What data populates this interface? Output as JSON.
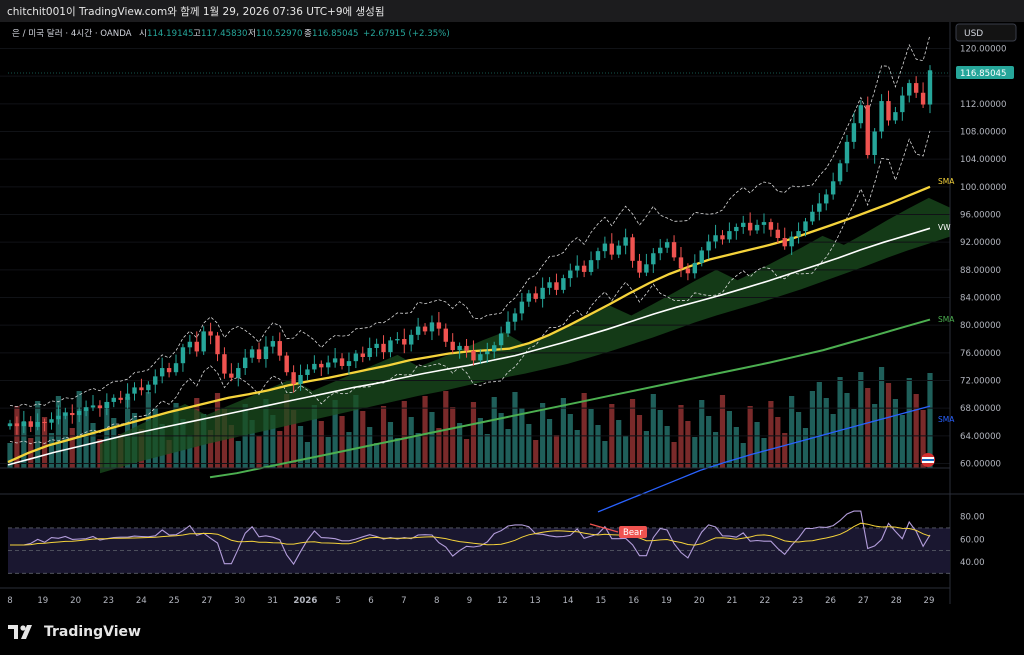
{
  "window": {
    "caption": "chitchit001이 TradingView.com와 함께 1월 29, 2026 07:36 UTC+9에 생성됨"
  },
  "legend": {
    "symbol": "은 / 미국 달러 · 4시간 · OANDA",
    "o_label": "시",
    "o_value": "114.19145",
    "h_label": "고",
    "h_value": "117.45830",
    "l_label": "저",
    "l_value": "110.52970",
    "c_label": "종",
    "c_value": "116.85045",
    "change": "+2.67915 (+2.35%)"
  },
  "currency_button": "USD",
  "price_badge": "116.85045",
  "footer": {
    "brand": "TradingView"
  },
  "colors": {
    "up": "#26a69a",
    "down": "#ef5350",
    "sma_fast": "#f5d33b",
    "sma_mid": "#4caf50",
    "sma_slow": "#2962ff",
    "vwap": "#ffffff",
    "rsi": "#b39ddb",
    "rsi_ma": "#f5d33b"
  },
  "chart_data": {
    "type": "candlestick",
    "price_axis": {
      "ticks": [
        "120.00000",
        "116.00000",
        "112.00000",
        "108.00000",
        "104.00000",
        "100.00000",
        "96.00000",
        "92.00000",
        "88.00000",
        "84.00000",
        "80.00000",
        "76.00000",
        "72.00000",
        "68.00000",
        "64.00000",
        "60.00000"
      ],
      "ylim": [
        59,
        121.5
      ]
    },
    "x_ticks": [
      "8",
      "19",
      "20",
      "23",
      "24",
      "25",
      "27",
      "30",
      "31",
      "2026",
      "5",
      "6",
      "7",
      "8",
      "9",
      "12",
      "13",
      "14",
      "15",
      "16",
      "19",
      "20",
      "21",
      "22",
      "23",
      "26",
      "27",
      "28",
      "29"
    ],
    "closes": [
      65.8,
      65.4,
      66.1,
      65.3,
      66.0,
      65.9,
      66.4,
      66.9,
      67.3,
      67.0,
      67.6,
      68.1,
      68.4,
      68.0,
      68.9,
      69.5,
      69.2,
      70.1,
      71.0,
      70.6,
      71.4,
      72.6,
      73.8,
      73.2,
      74.5,
      76.8,
      77.6,
      76.2,
      79.1,
      78.5,
      75.8,
      73.0,
      72.4,
      73.8,
      75.3,
      76.5,
      75.1,
      76.9,
      77.7,
      75.6,
      73.2,
      71.5,
      72.8,
      73.6,
      74.4,
      73.9,
      74.6,
      75.2,
      74.1,
      74.8,
      75.9,
      75.4,
      76.7,
      77.3,
      76.1,
      77.8,
      78.0,
      77.2,
      78.6,
      79.8,
      79.1,
      80.4,
      79.5,
      77.6,
      76.4,
      77.0,
      76.3,
      74.9,
      75.8,
      76.2,
      77.1,
      78.8,
      80.5,
      81.7,
      83.4,
      84.6,
      83.8,
      85.4,
      86.2,
      85.1,
      86.8,
      87.9,
      88.6,
      87.7,
      89.4,
      90.7,
      91.8,
      90.2,
      91.5,
      92.7,
      89.3,
      87.6,
      88.8,
      90.4,
      91.2,
      92.0,
      89.8,
      88.2,
      87.5,
      89.0,
      90.8,
      92.1,
      93.0,
      92.4,
      93.6,
      94.2,
      94.8,
      93.7,
      94.5,
      94.9,
      93.8,
      92.6,
      91.4,
      92.8,
      93.6,
      95.0,
      96.4,
      97.6,
      98.9,
      100.8,
      103.4,
      106.5,
      109.2,
      111.8,
      104.6,
      108.0,
      112.4,
      109.6,
      110.8,
      113.2,
      115.0,
      113.6,
      111.9,
      116.85
    ],
    "series": [
      {
        "name": "SMA",
        "values": [
          60.2,
          61.5,
          62.6,
          63.4,
          64.2,
          65.0,
          65.8,
          66.6,
          67.4,
          68.1,
          68.8,
          69.5,
          70.0,
          70.6,
          71.3,
          71.9,
          72.4,
          73.0,
          73.6,
          74.2,
          74.9,
          75.4,
          75.9,
          76.2,
          76.4,
          76.6,
          77.4,
          78.6,
          80.0,
          81.5,
          83.0,
          84.6,
          86.1,
          87.4,
          88.5,
          89.5,
          90.2,
          90.9,
          91.6,
          92.4,
          93.4,
          94.4,
          95.4,
          96.5,
          97.6,
          98.8,
          100.0
        ]
      },
      {
        "name": "VWAP",
        "values": [
          59.8,
          60.7,
          61.6,
          62.4,
          63.2,
          64.0,
          64.7,
          65.4,
          66.1,
          66.8,
          67.5,
          68.2,
          68.9,
          69.6,
          70.3,
          71.0,
          71.6,
          72.3,
          73.0,
          73.6,
          74.2,
          74.9,
          75.6,
          76.5,
          77.4,
          78.4,
          79.4,
          80.5,
          81.6,
          82.6,
          83.5,
          84.4,
          85.4,
          86.4,
          87.5,
          88.6,
          89.7,
          90.9,
          92.0,
          93.0,
          94.0
        ]
      },
      {
        "name": "SMA",
        "values": [
          58.0,
          58.6,
          59.4,
          60.2,
          61.0,
          61.8,
          62.6,
          63.4,
          64.2,
          65.0,
          65.8,
          66.6,
          67.4,
          68.2,
          69.0,
          69.8,
          70.6,
          71.4,
          72.2,
          73.0,
          73.8,
          74.6,
          75.5,
          76.4,
          77.5,
          78.6,
          79.7,
          80.8
        ]
      },
      {
        "name": "SMA",
        "values": [
          53.0,
          54.5,
          56.0,
          57.5,
          59.0,
          60.2,
          61.3,
          62.3,
          63.3,
          64.3,
          65.3,
          66.3,
          67.3,
          68.3
        ]
      }
    ],
    "rsi": {
      "axis_ticks": [
        "80.00",
        "60.00",
        "40.00"
      ],
      "ylim": [
        25,
        92
      ],
      "band": [
        70,
        30
      ],
      "signal_label": "Bear"
    }
  }
}
